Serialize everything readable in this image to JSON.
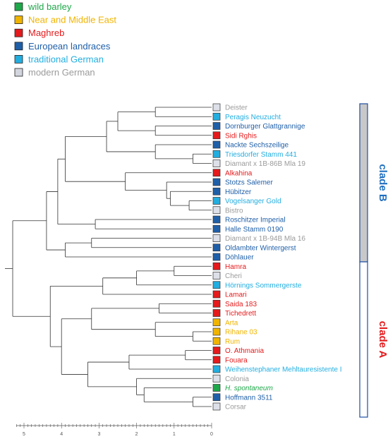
{
  "legend": [
    {
      "label": "wild barley",
      "color": "#1fa84a"
    },
    {
      "label": "Near and Middle East",
      "color": "#f0b400"
    },
    {
      "label": "Maghreb",
      "color": "#e41a1c"
    },
    {
      "label": "European landraces",
      "color": "#1f5fa8"
    },
    {
      "label": "traditional German",
      "color": "#23aee0"
    },
    {
      "label": "modern German",
      "color": "#d3d6de"
    }
  ],
  "label_colors": {
    "wild": "#1fa84a",
    "near_east": "#f0b400",
    "maghreb": "#e41a1c",
    "european": "#1f5fa8",
    "trad_german": "#23aee0",
    "modern": "#9b9b9b"
  },
  "leaves": [
    {
      "name": "Deister",
      "group": "modern"
    },
    {
      "name": "Peragis Neuzucht",
      "group": "trad_german"
    },
    {
      "name": "Dornburger Glattgrannige",
      "group": "european"
    },
    {
      "name": "Sidi Rghis",
      "group": "maghreb"
    },
    {
      "name": "Nackte Sechszeilige",
      "group": "european"
    },
    {
      "name": "Triesdorfer Stamm 441",
      "group": "trad_german"
    },
    {
      "name": "Diamant x 1B-86B Mla 19",
      "group": "modern"
    },
    {
      "name": "Alkahina",
      "group": "maghreb"
    },
    {
      "name": "Stotzs Salemer",
      "group": "european"
    },
    {
      "name": "Hübitzer",
      "group": "european"
    },
    {
      "name": "Vogelsanger Gold",
      "group": "trad_german"
    },
    {
      "name": "Bistro",
      "group": "modern"
    },
    {
      "name": "Roschitzer Imperial",
      "group": "european"
    },
    {
      "name": "Halle Stamm 0190",
      "group": "european"
    },
    {
      "name": "Diamant x 1B-94B Mla 16",
      "group": "modern"
    },
    {
      "name": "Oldambter Wintergerst",
      "group": "european"
    },
    {
      "name": "Döhlauer",
      "group": "european"
    },
    {
      "name": "Hamra",
      "group": "maghreb"
    },
    {
      "name": "Cheri",
      "group": "modern"
    },
    {
      "name": "Hörnings Sommergerste",
      "group": "trad_german"
    },
    {
      "name": "Lamari",
      "group": "maghreb"
    },
    {
      "name": "Saida 183",
      "group": "maghreb"
    },
    {
      "name": "Tichedrett",
      "group": "maghreb"
    },
    {
      "name": "Arta",
      "group": "near_east"
    },
    {
      "name": "Rihane 03",
      "group": "near_east"
    },
    {
      "name": "Rum",
      "group": "near_east"
    },
    {
      "name": "O. Athmania",
      "group": "maghreb"
    },
    {
      "name": "Fouara",
      "group": "maghreb"
    },
    {
      "name": "Weihenstephaner Mehltauresistente I",
      "group": "trad_german"
    },
    {
      "name": "Colonia",
      "group": "modern"
    },
    {
      "name": "H. spontaneum",
      "group": "wild",
      "italic": true
    },
    {
      "name": "Hoffmann 3511",
      "group": "european"
    },
    {
      "name": "Corsar",
      "group": "modern"
    }
  ],
  "axis_ticks": [
    "5",
    "4",
    "3",
    "2",
    "1",
    "0"
  ],
  "clades": [
    {
      "label": "clade B",
      "color": "#1f6fc0",
      "bar_fill": "#c8c8c8",
      "from_leaf": 0,
      "to_leaf": 16
    },
    {
      "label": "clade A",
      "color": "#e41a1c",
      "bar_fill": "#ffffff",
      "from_leaf": 16,
      "to_leaf": 32
    }
  ],
  "tree": [
    {
      "h": 4.4,
      "c": [
        {
          "h": 4.1,
          "c": [
            {
              "h": 3.9,
              "c": [
                {
                  "h": 2.8,
                  "c": [
                    {
                      "h": 2.5,
                      "c": [
                        {
                          "h": 1.5,
                          "c": [
                            0,
                            1
                          ]
                        },
                        {
                          "h": 1.5,
                          "c": [
                            2,
                            3
                          ]
                        }
                      ]
                    },
                    {
                      "h": 1.5,
                      "c": [
                        4,
                        {
                          "h": 0.5,
                          "c": [
                            5,
                            6
                          ]
                        }
                      ]
                    }
                  ]
                },
                {
                  "h": 2.3,
                  "c": [
                    7,
                    {
                      "h": 1.2,
                      "c": [
                        8,
                        {
                          "h": 1.1,
                          "c": [
                            9,
                            {
                              "h": 0.6,
                              "c": [
                                10,
                                11
                              ]
                            }
                          ]
                        }
                      ]
                    }
                  ]
                }
              ]
            },
            {
              "h": 3.1,
              "c": [
                12,
                13
              ]
            }
          ]
        },
        {
          "h": 3.9,
          "c": [
            {
              "h": 3.2,
              "c": [
                14,
                15
              ]
            },
            16
          ]
        }
      ]
    },
    {
      "h": 4.3,
      "c": [
        {
          "h": 2.9,
          "c": [
            {
              "h": 2.0,
              "c": [
                {
                  "h": 1.0,
                  "c": [
                    17,
                    18
                  ]
                },
                19
              ]
            },
            20
          ]
        },
        {
          "h": 4.0,
          "c": [
            {
              "h": 3.2,
              "c": [
                {
                  "h": 1.4,
                  "c": [
                    21,
                    22
                  ]
                },
                {
                  "h": 1.5,
                  "c": [
                    23,
                    {
                      "h": 0.5,
                      "c": [
                        24,
                        25
                      ]
                    }
                  ]
                }
              ]
            },
            {
              "h": 3.3,
              "c": [
                {
                  "h": 2.2,
                  "c": [
                    {
                      "h": 0.7,
                      "c": [
                        26,
                        27
                      ]
                    },
                    28
                  ]
                },
                {
                  "h": 2.0,
                  "c": [
                    29,
                    {
                      "h": 1.8,
                      "c": [
                        30,
                        {
                          "h": 0.5,
                          "c": [
                            31,
                            32
                          ]
                        }
                      ]
                    }
                  ]
                }
              ]
            }
          ]
        }
      ]
    }
  ]
}
